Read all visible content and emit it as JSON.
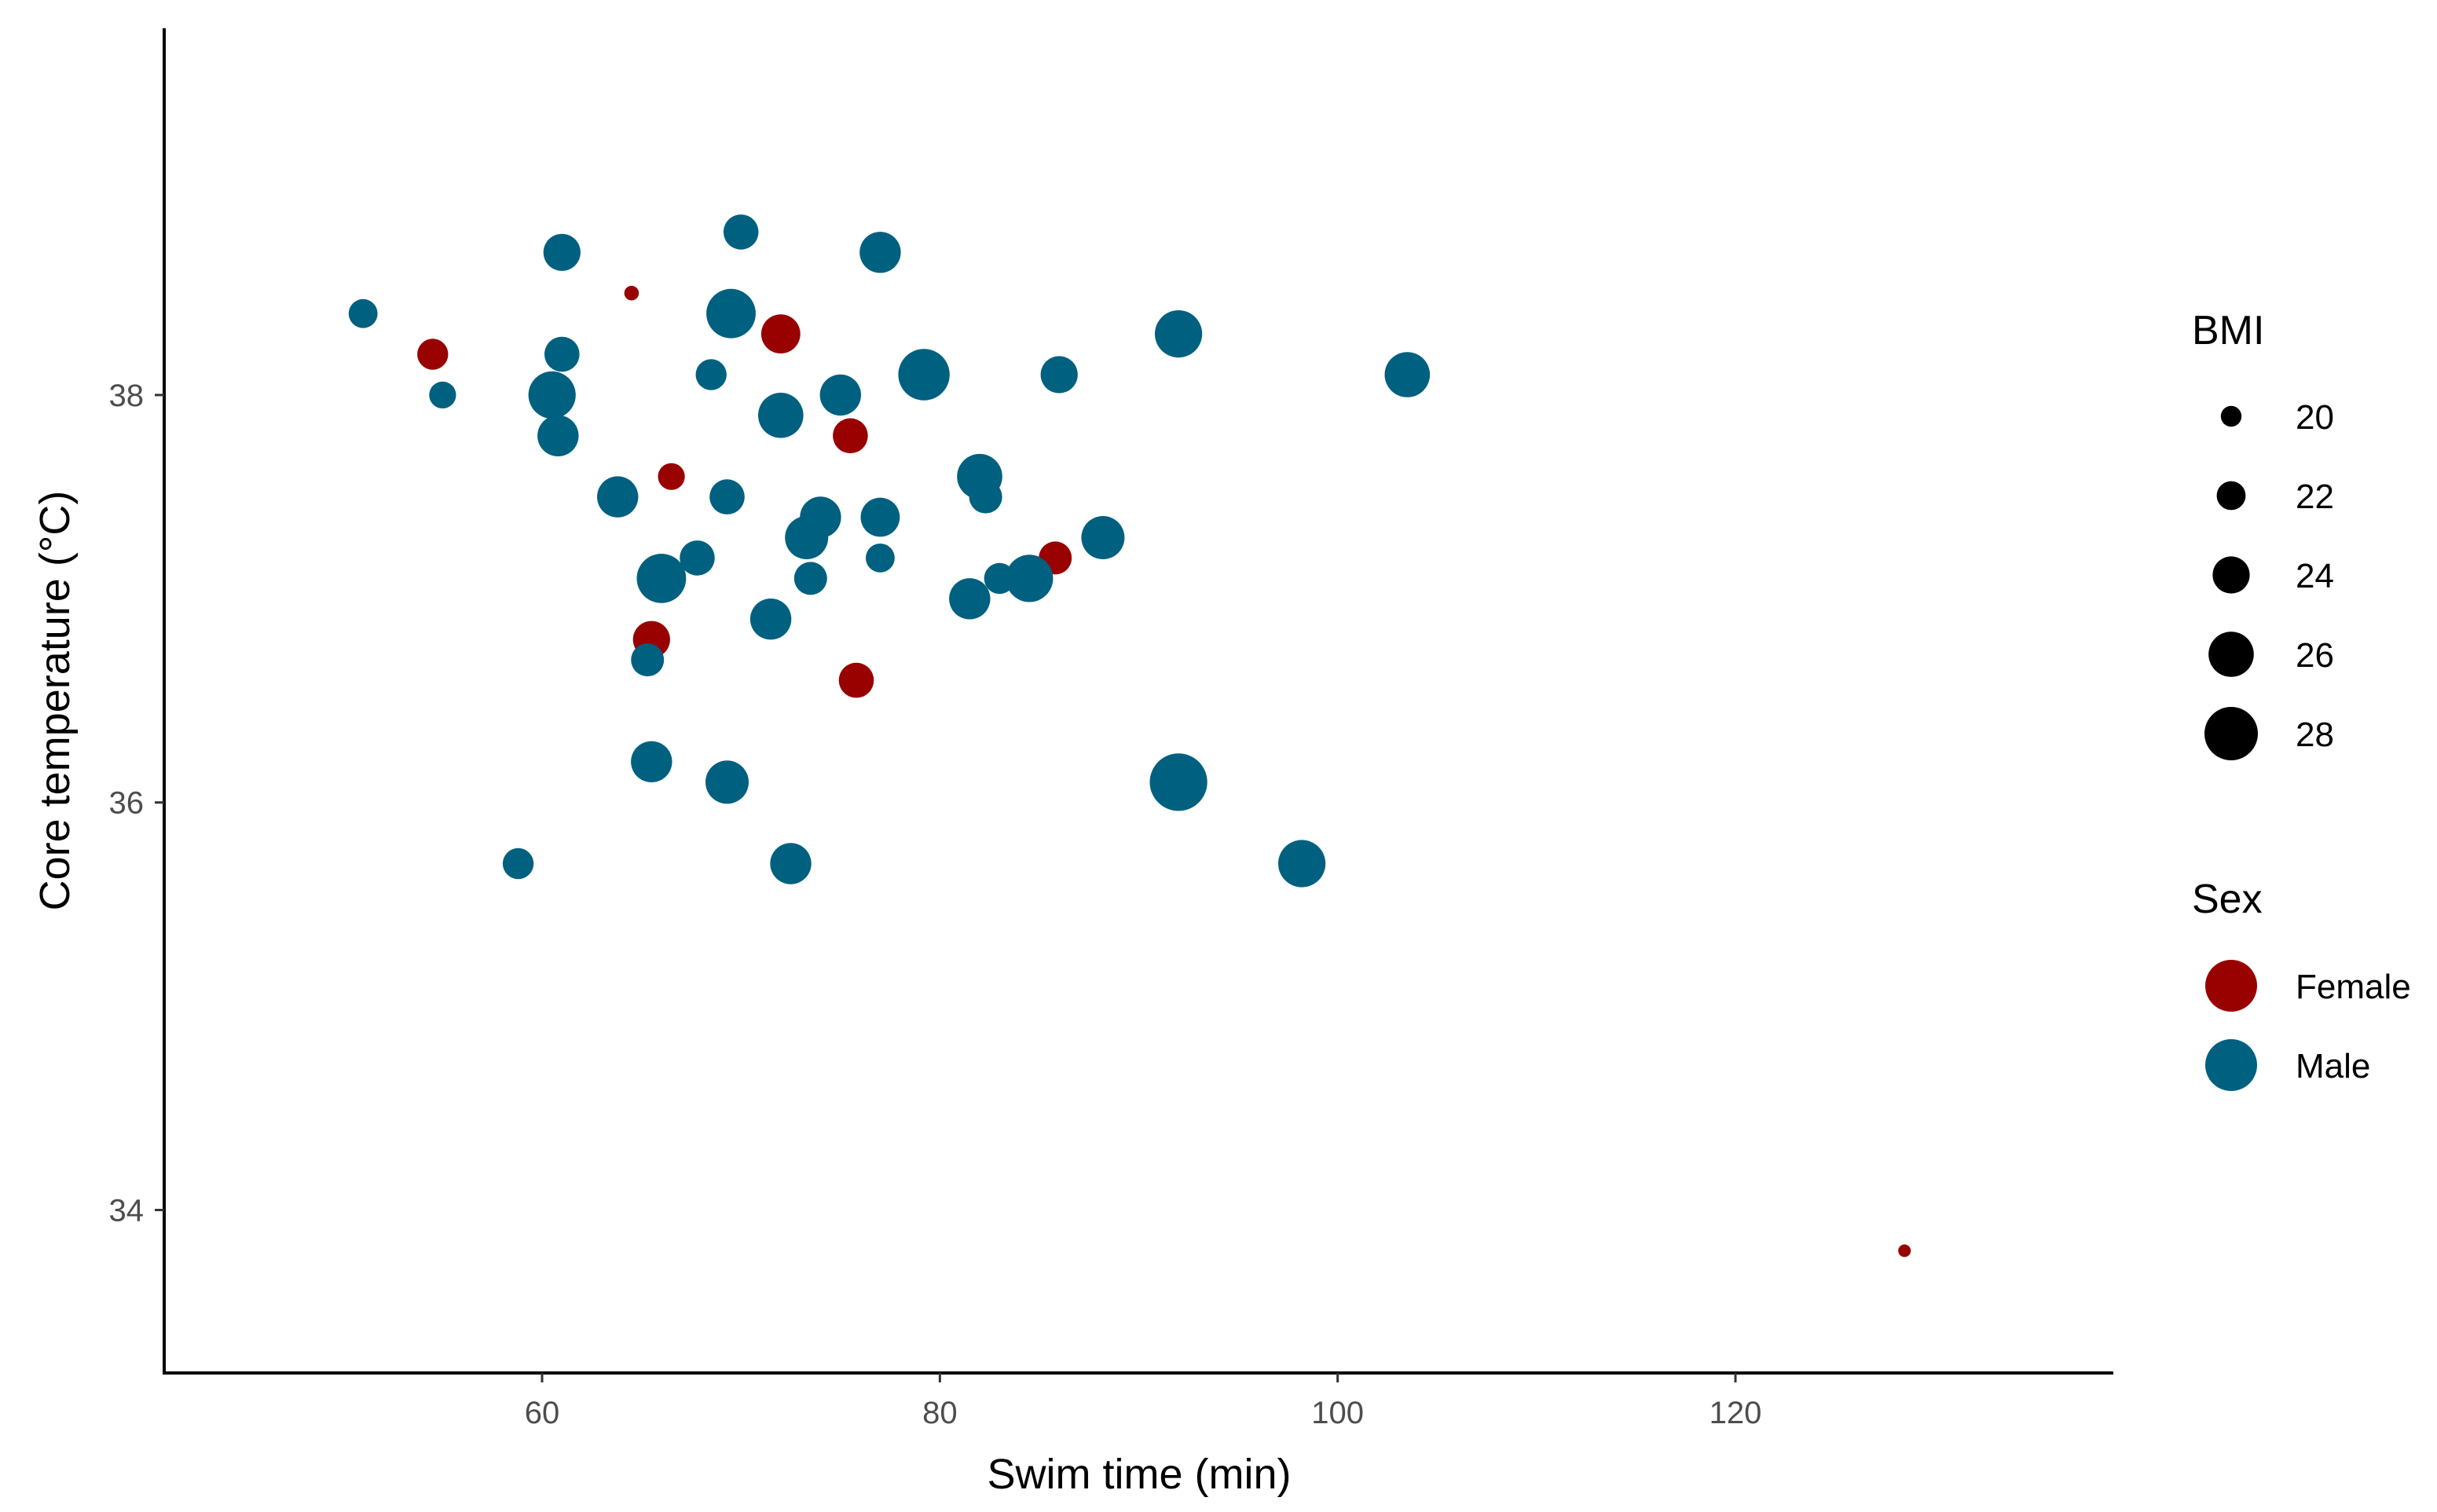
{
  "chart_data": {
    "type": "scatter",
    "xlabel": "Swim time (min)",
    "ylabel": "Core temperature (°C)",
    "xlim": [
      41,
      139
    ],
    "ylim": [
      33.2,
      39.8
    ],
    "x_ticks": [
      60,
      80,
      100,
      120
    ],
    "y_ticks": [
      34,
      36,
      38
    ],
    "grid": false,
    "legends": {
      "size": {
        "title": "BMI",
        "entries": [
          {
            "label": "20",
            "value": 20
          },
          {
            "label": "22",
            "value": 22
          },
          {
            "label": "24",
            "value": 24
          },
          {
            "label": "26",
            "value": 26
          },
          {
            "label": "28",
            "value": 28
          }
        ]
      },
      "color": {
        "title": "Sex",
        "entries": [
          {
            "label": "Female",
            "color": "#990000"
          },
          {
            "label": "Male",
            "color": "#006080"
          }
        ]
      },
      "placement": "right"
    },
    "series": [
      {
        "name": "Female",
        "color": "#990000",
        "points": [
          {
            "x": 64.5,
            "y": 38.5,
            "bmi": 18.5
          },
          {
            "x": 54.5,
            "y": 38.2,
            "bmi": 22.5
          },
          {
            "x": 72.0,
            "y": 38.3,
            "bmi": 24.5
          },
          {
            "x": 75.5,
            "y": 37.8,
            "bmi": 23.5
          },
          {
            "x": 66.5,
            "y": 37.6,
            "bmi": 21.5
          },
          {
            "x": 85.8,
            "y": 37.2,
            "bmi": 23.0
          },
          {
            "x": 65.5,
            "y": 36.8,
            "bmi": 24.0
          },
          {
            "x": 75.8,
            "y": 36.6,
            "bmi": 23.5
          },
          {
            "x": 128.5,
            "y": 33.8,
            "bmi": 18.0
          }
        ]
      },
      {
        "name": "Male",
        "color": "#006080",
        "points": [
          {
            "x": 51.0,
            "y": 38.4,
            "bmi": 22.0
          },
          {
            "x": 55.0,
            "y": 38.0,
            "bmi": 21.5
          },
          {
            "x": 61.0,
            "y": 38.7,
            "bmi": 24.0
          },
          {
            "x": 70.0,
            "y": 38.8,
            "bmi": 23.5
          },
          {
            "x": 77.0,
            "y": 38.7,
            "bmi": 25.0
          },
          {
            "x": 69.5,
            "y": 38.4,
            "bmi": 27.0
          },
          {
            "x": 61.0,
            "y": 38.2,
            "bmi": 23.5
          },
          {
            "x": 60.5,
            "y": 38.0,
            "bmi": 26.5
          },
          {
            "x": 60.8,
            "y": 37.8,
            "bmi": 25.0
          },
          {
            "x": 68.5,
            "y": 38.1,
            "bmi": 22.5
          },
          {
            "x": 75.0,
            "y": 38.0,
            "bmi": 25.0
          },
          {
            "x": 72.0,
            "y": 37.9,
            "bmi": 26.0
          },
          {
            "x": 79.2,
            "y": 38.1,
            "bmi": 27.5
          },
          {
            "x": 86.0,
            "y": 38.1,
            "bmi": 24.0
          },
          {
            "x": 92.0,
            "y": 38.3,
            "bmi": 26.5
          },
          {
            "x": 103.5,
            "y": 38.1,
            "bmi": 26.0
          },
          {
            "x": 63.8,
            "y": 37.5,
            "bmi": 25.0
          },
          {
            "x": 69.3,
            "y": 37.5,
            "bmi": 23.5
          },
          {
            "x": 74.0,
            "y": 37.4,
            "bmi": 25.0
          },
          {
            "x": 73.3,
            "y": 37.3,
            "bmi": 25.5
          },
          {
            "x": 77.0,
            "y": 37.4,
            "bmi": 24.5
          },
          {
            "x": 82.0,
            "y": 37.6,
            "bmi": 26.0
          },
          {
            "x": 82.3,
            "y": 37.5,
            "bmi": 23.0
          },
          {
            "x": 88.2,
            "y": 37.3,
            "bmi": 25.5
          },
          {
            "x": 67.8,
            "y": 37.2,
            "bmi": 23.5
          },
          {
            "x": 66.0,
            "y": 37.1,
            "bmi": 27.0
          },
          {
            "x": 77.0,
            "y": 37.2,
            "bmi": 22.0
          },
          {
            "x": 73.5,
            "y": 37.1,
            "bmi": 23.0
          },
          {
            "x": 83.0,
            "y": 37.1,
            "bmi": 22.5
          },
          {
            "x": 84.5,
            "y": 37.1,
            "bmi": 26.5
          },
          {
            "x": 81.5,
            "y": 37.0,
            "bmi": 25.0
          },
          {
            "x": 71.5,
            "y": 36.9,
            "bmi": 25.0
          },
          {
            "x": 65.3,
            "y": 36.7,
            "bmi": 23.0
          },
          {
            "x": 65.5,
            "y": 36.2,
            "bmi": 25.0
          },
          {
            "x": 69.3,
            "y": 36.1,
            "bmi": 25.5
          },
          {
            "x": 92.0,
            "y": 36.1,
            "bmi": 29.0
          },
          {
            "x": 58.8,
            "y": 35.7,
            "bmi": 22.5
          },
          {
            "x": 72.5,
            "y": 35.7,
            "bmi": 25.0
          },
          {
            "x": 98.2,
            "y": 35.7,
            "bmi": 26.5
          }
        ]
      }
    ]
  }
}
